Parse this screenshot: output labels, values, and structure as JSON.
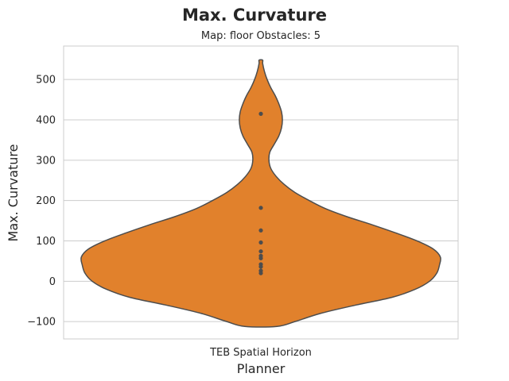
{
  "chart_data": {
    "type": "violin",
    "suptitle": "Max. Curvature",
    "title": "Map: floor Obstacles: 5",
    "xlabel": "Planner",
    "ylabel": "Max. Curvature",
    "categories": [
      "TEB Spatial Horizon"
    ],
    "ylim": [
      -143,
      583
    ],
    "yticks": [
      -100,
      0,
      100,
      200,
      300,
      400,
      500
    ],
    "ytick_labels": [
      "−100",
      "0",
      "100",
      "200",
      "300",
      "400",
      "500"
    ],
    "grid": true,
    "colors": {
      "violin_fill": "#e1812c",
      "violin_edge": "#4d4d4d",
      "points": "#4d4d4d",
      "grid": "#cccccc",
      "frame": "#cccccc"
    },
    "series": [
      {
        "category": "TEB Spatial Horizon",
        "points": [
          415,
          182,
          126,
          96,
          74,
          63,
          57,
          42,
          36,
          26,
          20
        ],
        "density_extent": [
          -112,
          548
        ],
        "density_profile": [
          [
            -112,
            0.09
          ],
          [
            -100,
            0.19
          ],
          [
            -80,
            0.33
          ],
          [
            -60,
            0.52
          ],
          [
            -40,
            0.73
          ],
          [
            -20,
            0.86
          ],
          [
            0,
            0.94
          ],
          [
            20,
            0.98
          ],
          [
            40,
            0.995
          ],
          [
            60,
            1.0
          ],
          [
            80,
            0.96
          ],
          [
            100,
            0.87
          ],
          [
            120,
            0.75
          ],
          [
            140,
            0.62
          ],
          [
            160,
            0.48
          ],
          [
            180,
            0.36
          ],
          [
            200,
            0.27
          ],
          [
            220,
            0.19
          ],
          [
            240,
            0.13
          ],
          [
            260,
            0.085
          ],
          [
            280,
            0.055
          ],
          [
            300,
            0.045
          ],
          [
            320,
            0.05
          ],
          [
            340,
            0.075
          ],
          [
            360,
            0.1
          ],
          [
            380,
            0.115
          ],
          [
            400,
            0.12
          ],
          [
            420,
            0.115
          ],
          [
            440,
            0.1
          ],
          [
            460,
            0.08
          ],
          [
            480,
            0.055
          ],
          [
            500,
            0.035
          ],
          [
            520,
            0.02
          ],
          [
            540,
            0.01
          ],
          [
            548,
            0.01
          ]
        ]
      }
    ]
  }
}
